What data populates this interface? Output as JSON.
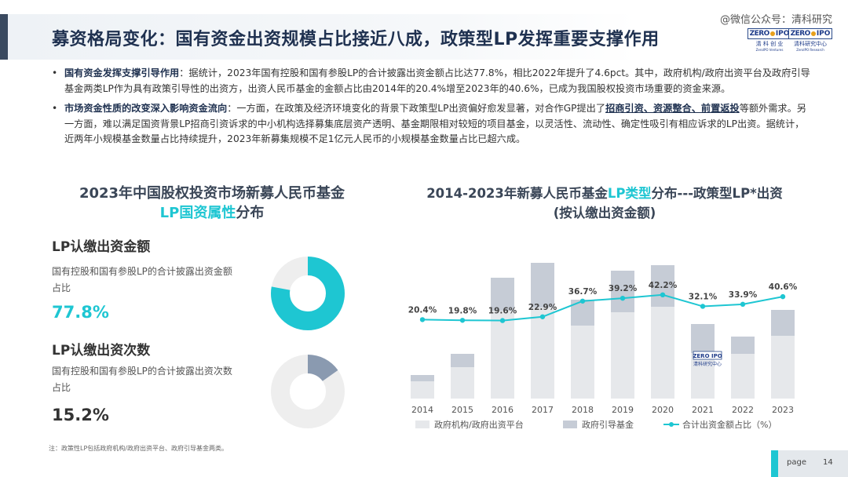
{
  "header": {
    "title": "募资格局变化：国有资金出资规模占比接近八成，政策型LP发挥重要支撑作用",
    "watermark": "@微信公众号：清科研究",
    "logo1": {
      "zero": "ZERO",
      "ipo": "IPO",
      "cn": "清 科 创 业",
      "en": "ZeroIPO Ventures"
    },
    "logo2": {
      "zero": "ZERO",
      "ipo": "IPO",
      "cn": "清科研究中心",
      "en": "ZeroIPO Research"
    }
  },
  "bullets": [
    {
      "head": "国有资金发挥支撑引导作用",
      "text": "：据统计，2023年国有控股和国有参股LP的合计披露出资金额占比达77.8%，相比2022年提升了4.6pct。其中，政府机构/政府出资平台及政府引导基金两类LP作为具有政策引导性的出资方，出资人民币基金的金额占比由2014年的20.4%增至2023年的40.6%，已成为我国股权投资市场重要的资金来源。"
    },
    {
      "head": "市场资金性质的改变深入影响资金流向",
      "text1": "：一方面，在政策及经济环境变化的背景下政策型LP出资偏好愈发显著，对合作GP提出了",
      "highlight": "招商引资、资源整合、前置返投",
      "text2": "等额外需求。另一方面，难以满足国资背景LP招商引资诉求的中小机构选择募集底层资产透明、基金期限相对较短的项目基金，以灵活性、流动性、确定性吸引有相应诉求的LP出资。据统计，近两年小规模基金数量占比持续提升，2023年新募集规模不足1亿元人民币的小规模基金数量占比已超六成。"
    }
  ],
  "left_chart": {
    "title_line1": "2023年中国股权投资市场新募人民币基金",
    "title_line2_hl": "LP国资属性",
    "title_line2_rest": "分布",
    "metrics": [
      {
        "title": "LP认缴出资金额",
        "desc": "国有控股和国有参股LP的合计披露出资金额占比",
        "value_text": "77.8%",
        "value": 77.8,
        "color": "#1ec6d2"
      },
      {
        "title": "LP认缴出资次数",
        "desc": "国有控股和国有参股LP的合计披露出资次数占比",
        "value_text": "15.2%",
        "value": 15.2,
        "color": "#8a9ab0"
      }
    ]
  },
  "right_chart": {
    "title_line1_a": "2014-2023年新募人民币基金",
    "title_line1_hl": "LP类型",
    "title_line1_b": "分布---政策型LP*出资",
    "title_line2": "(按认缴出资金额)"
  },
  "chart_data": {
    "type": "bar",
    "stacked": true,
    "categories": [
      "2014",
      "2015",
      "2016",
      "2017",
      "2018",
      "2019",
      "2020",
      "2021",
      "2022",
      "2023"
    ],
    "series": [
      {
        "name": "政府机构/政府出资平台",
        "type": "bar",
        "color": "#e6e8eb",
        "values": [
          22,
          40,
          112,
          116,
          93,
          110,
          117,
          58,
          57,
          80
        ]
      },
      {
        "name": "政府引导基金",
        "type": "bar",
        "color": "#c6ccd6",
        "values": [
          8,
          17,
          42,
          57,
          33,
          53,
          53,
          37,
          22,
          33
        ]
      },
      {
        "name": "合计出资金额占比（%）",
        "type": "line",
        "color": "#1ec6d2",
        "values": [
          20.4,
          19.8,
          19.6,
          22.9,
          36.7,
          39.2,
          42.2,
          32.1,
          33.9,
          40.6
        ],
        "labels": [
          "20.4%",
          "19.8%",
          "19.6%",
          "22.9%",
          "36.7%",
          "39.2%",
          "42.2%",
          "32.1%",
          "33.9%",
          "40.6%"
        ]
      }
    ],
    "legend_position": "bottom",
    "grid": false
  },
  "footnote": "注：政策性LP包括政府机构/政府出资平台、政府引导基金两类。",
  "page": {
    "label": "page",
    "number": "14"
  }
}
